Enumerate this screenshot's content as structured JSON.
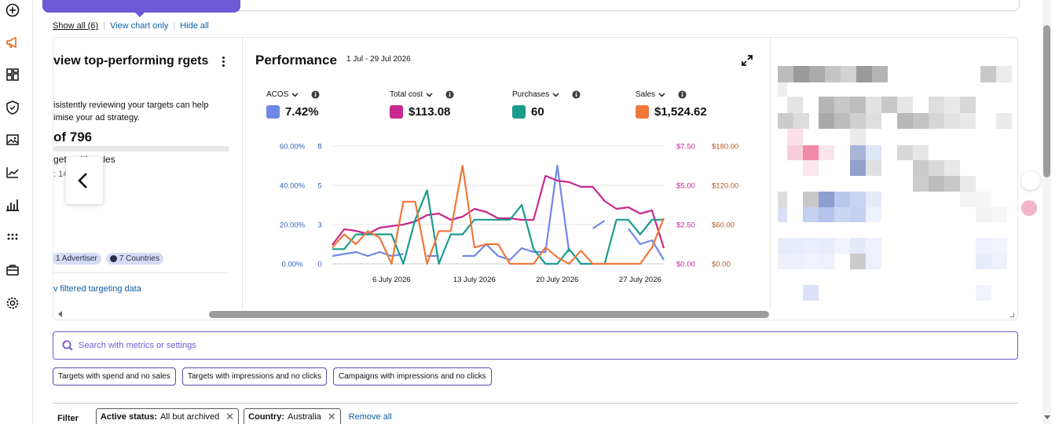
{
  "view_links": {
    "show_all": "Show all (6)",
    "view_chart_only": "View chart only",
    "hide_all": "Hide all"
  },
  "review_card": {
    "title": "view top-performing rgets",
    "description": "isistently reviewing your targets can help imise your ad strategy.",
    "count": "of 796",
    "sales_label": "gets with sales",
    "sub_label": ": 14",
    "chips": [
      "1 Advertiser",
      "7 Countries"
    ],
    "link": "v filtered targeting data"
  },
  "performance": {
    "title": "Performance",
    "date_range": "1 Jul - 29 Jul 2026",
    "metrics": [
      {
        "label": "ACOS",
        "value": "7.42%",
        "color": "#6f88e8"
      },
      {
        "label": "Total cost",
        "value": "$113.08",
        "color": "#c8288f"
      },
      {
        "label": "Purchases",
        "value": "60",
        "color": "#1a9c8c"
      },
      {
        "label": "Sales",
        "value": "$1,524.62",
        "color": "#f0773a"
      }
    ]
  },
  "chart_data": {
    "type": "line",
    "x_ticks": [
      "6 July 2026",
      "13 July 2026",
      "20 July 2026",
      "27 July 2026"
    ],
    "axes": {
      "acos": {
        "ticks": [
          "0.00%",
          "20.00%",
          "40.00%",
          "60.00%"
        ],
        "color": "#2f62b8"
      },
      "purchases": {
        "ticks": [
          "0",
          "3",
          "5",
          "8"
        ],
        "color": "#2f62b8"
      },
      "total_cost": {
        "ticks": [
          "$0.00",
          "$2.50",
          "$5.00",
          "$7.50"
        ],
        "color": "#c8288f"
      },
      "sales": {
        "ticks": [
          "$0.00",
          "$60.00",
          "$120.00",
          "$180.00"
        ],
        "color": "#b8561f"
      }
    },
    "day_range": [
      1,
      29
    ],
    "series": [
      {
        "name": "ACOS",
        "color": "#6f88e8",
        "unit": "%",
        "ymax": 60,
        "values": [
          4,
          5,
          6,
          4,
          6,
          4,
          5,
          null,
          4,
          4,
          null,
          4,
          4,
          10,
          4,
          2,
          8,
          6,
          6,
          50,
          6,
          null,
          18,
          22,
          null,
          18,
          10,
          12,
          2
        ]
      },
      {
        "name": "Total cost",
        "color": "#c8288f",
        "unit": "$",
        "ymax": 7.5,
        "values": [
          1.2,
          2.2,
          2.1,
          1.9,
          2.3,
          2.4,
          2.5,
          2.7,
          3.1,
          3.2,
          2.8,
          3.0,
          3.5,
          3.3,
          2.9,
          2.9,
          2.8,
          2.8,
          5.6,
          5.3,
          5.2,
          4.9,
          4.9,
          4.0,
          3.5,
          3.6,
          3.2,
          3.4,
          1.0
        ]
      },
      {
        "name": "Purchases",
        "color": "#1a9c8c",
        "unit": "",
        "ymax": 8,
        "values": [
          1,
          1,
          2,
          2,
          2,
          2,
          0,
          3,
          5,
          0,
          2,
          2,
          3,
          3,
          3,
          3,
          4,
          1,
          0,
          0,
          1,
          0,
          0,
          0,
          3,
          3,
          2,
          3,
          3
        ]
      },
      {
        "name": "Sales",
        "color": "#f0773a",
        "unit": "$",
        "ymax": 180,
        "values": [
          25,
          45,
          30,
          50,
          40,
          0,
          95,
          95,
          0,
          50,
          50,
          150,
          25,
          30,
          30,
          0,
          0,
          0,
          25,
          10,
          0,
          20,
          0,
          0,
          0,
          0,
          0,
          25,
          70
        ]
      }
    ]
  },
  "search": {
    "placeholder": "Search with metrics or settings"
  },
  "suggestions": [
    "Targets with spend and no sales",
    "Targets with impressions and no clicks",
    "Campaigns with impressions and no clicks"
  ],
  "filter": {
    "label": "Filter",
    "chips": [
      {
        "key": "Active status:",
        "value": "All but archived"
      },
      {
        "key": "Country:",
        "value": "Australia"
      }
    ],
    "remove_all": "Remove all"
  }
}
